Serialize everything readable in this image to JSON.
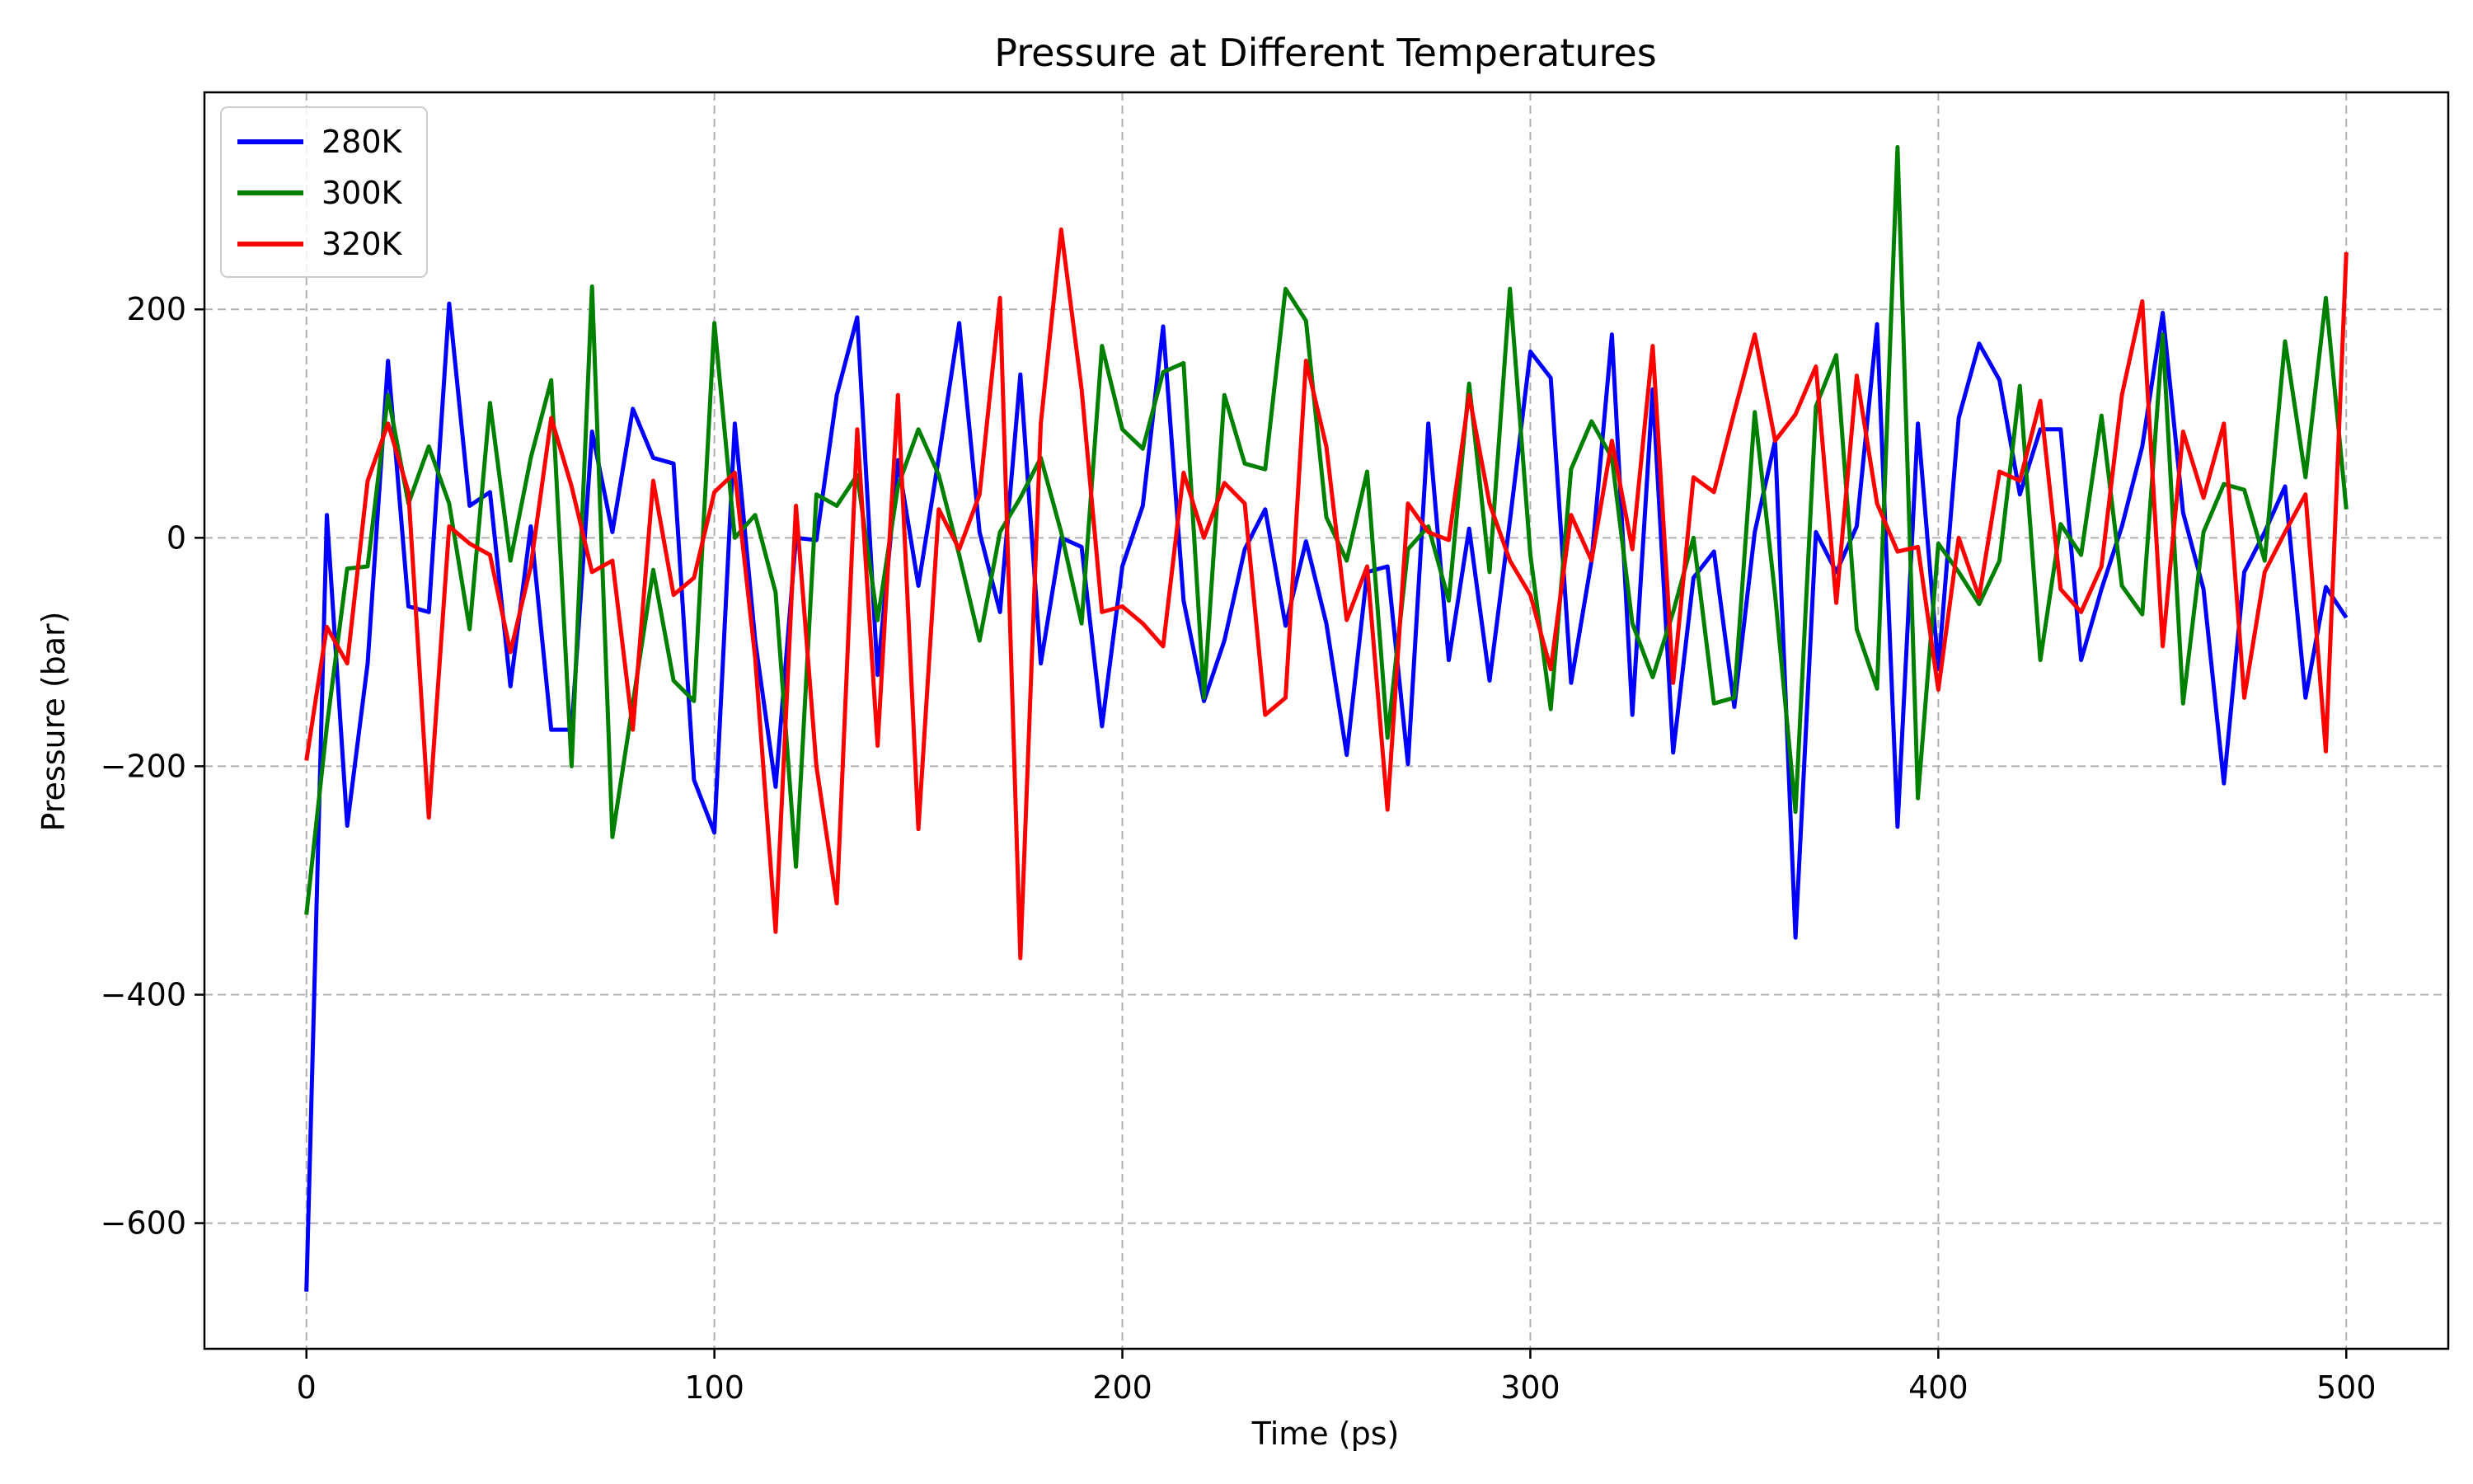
{
  "chart_data": {
    "type": "line",
    "title": "Pressure at Different Temperatures",
    "xlabel": "Time (ps)",
    "ylabel": "Pressure (bar)",
    "xlim": [
      -25,
      525
    ],
    "ylim": [
      -710,
      390
    ],
    "xticks": [
      0,
      100,
      200,
      300,
      400,
      500
    ],
    "yticks": [
      -600,
      -400,
      -200,
      0,
      200
    ],
    "ytick_labels": [
      "−600",
      "−400",
      "−200",
      "0",
      "200"
    ],
    "grid": true,
    "legend_position": "top-left",
    "x": [
      0,
      5,
      10,
      15,
      20,
      25,
      30,
      35,
      40,
      45,
      50,
      55,
      60,
      65,
      70,
      75,
      80,
      85,
      90,
      95,
      100,
      105,
      110,
      115,
      120,
      125,
      130,
      135,
      140,
      145,
      150,
      155,
      160,
      165,
      170,
      175,
      180,
      185,
      190,
      195,
      200,
      205,
      210,
      215,
      220,
      225,
      230,
      235,
      240,
      245,
      250,
      255,
      260,
      265,
      270,
      275,
      280,
      285,
      290,
      295,
      300,
      305,
      310,
      315,
      320,
      325,
      330,
      335,
      340,
      345,
      350,
      355,
      360,
      365,
      370,
      375,
      380,
      385,
      390,
      395,
      400,
      405,
      410,
      415,
      420,
      425,
      430,
      435,
      440,
      445,
      450,
      455,
      460,
      465,
      470,
      475,
      480,
      485,
      490,
      495,
      500
    ],
    "series": [
      {
        "name": "280K",
        "color": "#0000ff",
        "values": [
          -660,
          20,
          -252,
          -110,
          155,
          -60,
          -65,
          205,
          28,
          40,
          -130,
          10,
          -168,
          -168,
          93,
          5,
          113,
          70,
          65,
          -212,
          -258,
          100,
          -90,
          -218,
          0,
          -2,
          125,
          193,
          -120,
          68,
          -42,
          70,
          188,
          5,
          -65,
          143,
          -110,
          0,
          -8,
          -165,
          -25,
          28,
          185,
          -55,
          -143,
          -90,
          -10,
          25,
          -77,
          -3,
          -75,
          -190,
          -30,
          -25,
          -198,
          100,
          -107,
          8,
          -125,
          15,
          163,
          140,
          -127,
          -20,
          178,
          -155,
          130,
          -188,
          -35,
          -12,
          -148,
          5,
          85,
          -350,
          5,
          -30,
          10,
          187,
          -253,
          100,
          -115,
          105,
          170,
          138,
          38,
          95,
          95,
          -107,
          -45,
          10,
          80,
          197,
          22,
          -45,
          -215,
          -30,
          5,
          45,
          -140,
          -43,
          -70
        ]
      },
      {
        "name": "300K",
        "color": "#008000",
        "values": [
          -330,
          -165,
          -27,
          -25,
          125,
          30,
          80,
          30,
          -80,
          118,
          -20,
          70,
          138,
          -200,
          220,
          -262,
          -145,
          -28,
          -125,
          -143,
          188,
          0,
          20,
          -48,
          -288,
          38,
          28,
          55,
          -72,
          45,
          95,
          55,
          -15,
          -90,
          5,
          35,
          70,
          5,
          -75,
          168,
          95,
          78,
          145,
          153,
          -140,
          125,
          65,
          60,
          218,
          190,
          18,
          -20,
          58,
          -175,
          -10,
          10,
          -55,
          135,
          -30,
          218,
          -15,
          -150,
          60,
          102,
          70,
          -75,
          -122,
          -65,
          0,
          -145,
          -140,
          110,
          -50,
          -240,
          115,
          160,
          -80,
          -132,
          342,
          -228,
          -5,
          -30,
          -58,
          -20,
          133,
          -107,
          12,
          -15,
          107,
          -42,
          -67,
          178,
          -145,
          5,
          47,
          42,
          -20,
          172,
          53,
          210,
          25
        ]
      },
      {
        "name": "320K",
        "color": "#ff0000",
        "values": [
          -195,
          -78,
          -110,
          50,
          100,
          40,
          -245,
          10,
          -5,
          -15,
          -100,
          -25,
          105,
          45,
          -30,
          -20,
          -168,
          50,
          -50,
          -35,
          40,
          57,
          -105,
          -345,
          28,
          -200,
          -320,
          95,
          -182,
          125,
          -255,
          25,
          -10,
          38,
          210,
          -368,
          100,
          270,
          130,
          -65,
          -60,
          -75,
          -95,
          57,
          0,
          48,
          30,
          -155,
          -140,
          155,
          80,
          -72,
          -25,
          -238,
          30,
          5,
          -2,
          125,
          30,
          -20,
          -50,
          -115,
          20,
          -20,
          85,
          -10,
          168,
          -127,
          53,
          40,
          110,
          178,
          85,
          108,
          150,
          -57,
          142,
          30,
          -12,
          -8,
          -133,
          0,
          -52,
          58,
          50,
          120,
          -45,
          -65,
          -25,
          125,
          207,
          -95,
          93,
          35,
          100,
          -140,
          -30,
          5,
          38,
          -187,
          250
        ]
      }
    ]
  }
}
